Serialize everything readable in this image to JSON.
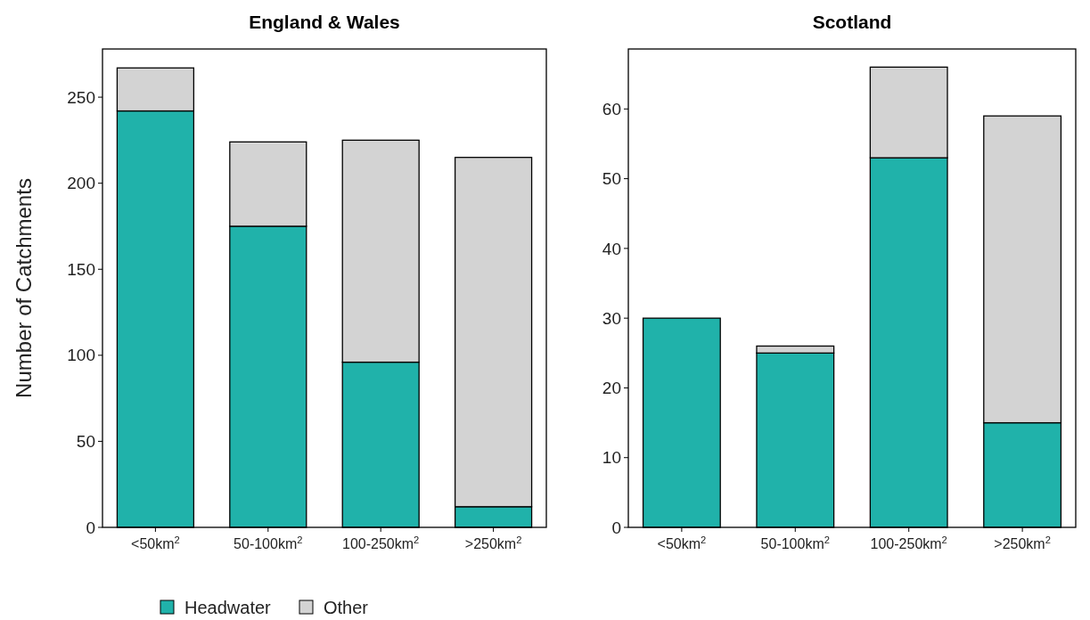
{
  "chart_data": [
    {
      "type": "bar",
      "title": "England & Wales",
      "ylabel": "Number of Catchments",
      "categories": [
        "<50km$^{2}$",
        "50-100km$^{2}$",
        "100-250km$^{2}$",
        ">250km$^{2}$"
      ],
      "stacked": true,
      "ylim": [
        0,
        278
      ],
      "yticks": [
        0,
        50,
        100,
        150,
        200,
        250
      ],
      "grid": false,
      "legend": "bottom",
      "series": [
        {
          "name": "Headwater",
          "color": "#20b2aa",
          "values": [
            242,
            175,
            96,
            12
          ]
        },
        {
          "name": "Other",
          "color": "#d3d3d3",
          "values": [
            25,
            49,
            129,
            203
          ]
        }
      ]
    },
    {
      "type": "bar",
      "title": "Scotland",
      "categories": [
        "<50km$^{2}$",
        "50-100km$^{2}$",
        "100-250km$^{2}$",
        ">250km$^{2}$"
      ],
      "stacked": true,
      "ylim": [
        0,
        68.6
      ],
      "yticks": [
        0,
        10,
        20,
        30,
        40,
        50,
        60
      ],
      "grid": false,
      "series": [
        {
          "color": "#20b2aa",
          "values": [
            30,
            25,
            53,
            15
          ]
        },
        {
          "color": "#d3d3d3",
          "values": [
            0,
            1,
            13,
            44
          ]
        }
      ]
    }
  ]
}
